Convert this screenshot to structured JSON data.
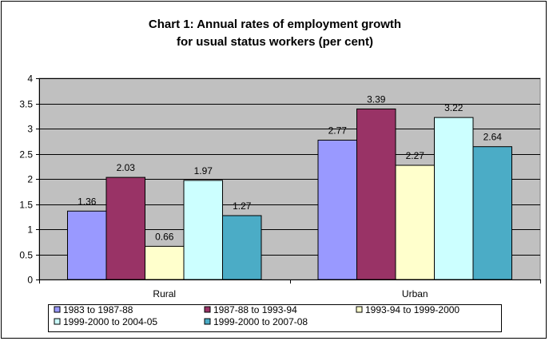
{
  "chart_data": {
    "type": "bar",
    "title_lines": [
      "Chart 1: Annual rates of employment growth",
      "for usual status workers (per cent)"
    ],
    "categories": [
      "Rural",
      "Urban"
    ],
    "series": [
      {
        "name": "1983 to 1987-88",
        "color": "#9999FF",
        "values": [
          1.36,
          2.77
        ]
      },
      {
        "name": "1987-88 to 1993-94",
        "color": "#993366",
        "values": [
          2.03,
          3.39
        ]
      },
      {
        "name": "1993-94 to 1999-2000",
        "color": "#FFFFCC",
        "values": [
          0.66,
          2.27
        ]
      },
      {
        "name": "1999-2000 to 2004-05",
        "color": "#CCFFFF",
        "values": [
          1.97,
          3.22
        ]
      },
      {
        "name": "1999-2000 to 2007-08",
        "color": "#4BACC6",
        "values": [
          1.27,
          2.64
        ]
      }
    ],
    "data_labels": [
      [
        "1.36",
        "2.77"
      ],
      [
        "2.03",
        "3.39"
      ],
      [
        "0.66",
        "2.27"
      ],
      [
        "1.97",
        "3.22"
      ],
      [
        "1.27",
        "2.64"
      ]
    ],
    "yticks": [
      "0",
      "0.5",
      "1",
      "1.5",
      "2",
      "2.5",
      "3",
      "3.5",
      "4"
    ],
    "ytick_values": [
      0,
      0.5,
      1,
      1.5,
      2,
      2.5,
      3,
      3.5,
      4
    ],
    "ylim": [
      0,
      4
    ],
    "xlabel": "",
    "ylabel": "",
    "grid": true,
    "plot_background": "#C0C0C0",
    "legend_position": "bottom"
  }
}
